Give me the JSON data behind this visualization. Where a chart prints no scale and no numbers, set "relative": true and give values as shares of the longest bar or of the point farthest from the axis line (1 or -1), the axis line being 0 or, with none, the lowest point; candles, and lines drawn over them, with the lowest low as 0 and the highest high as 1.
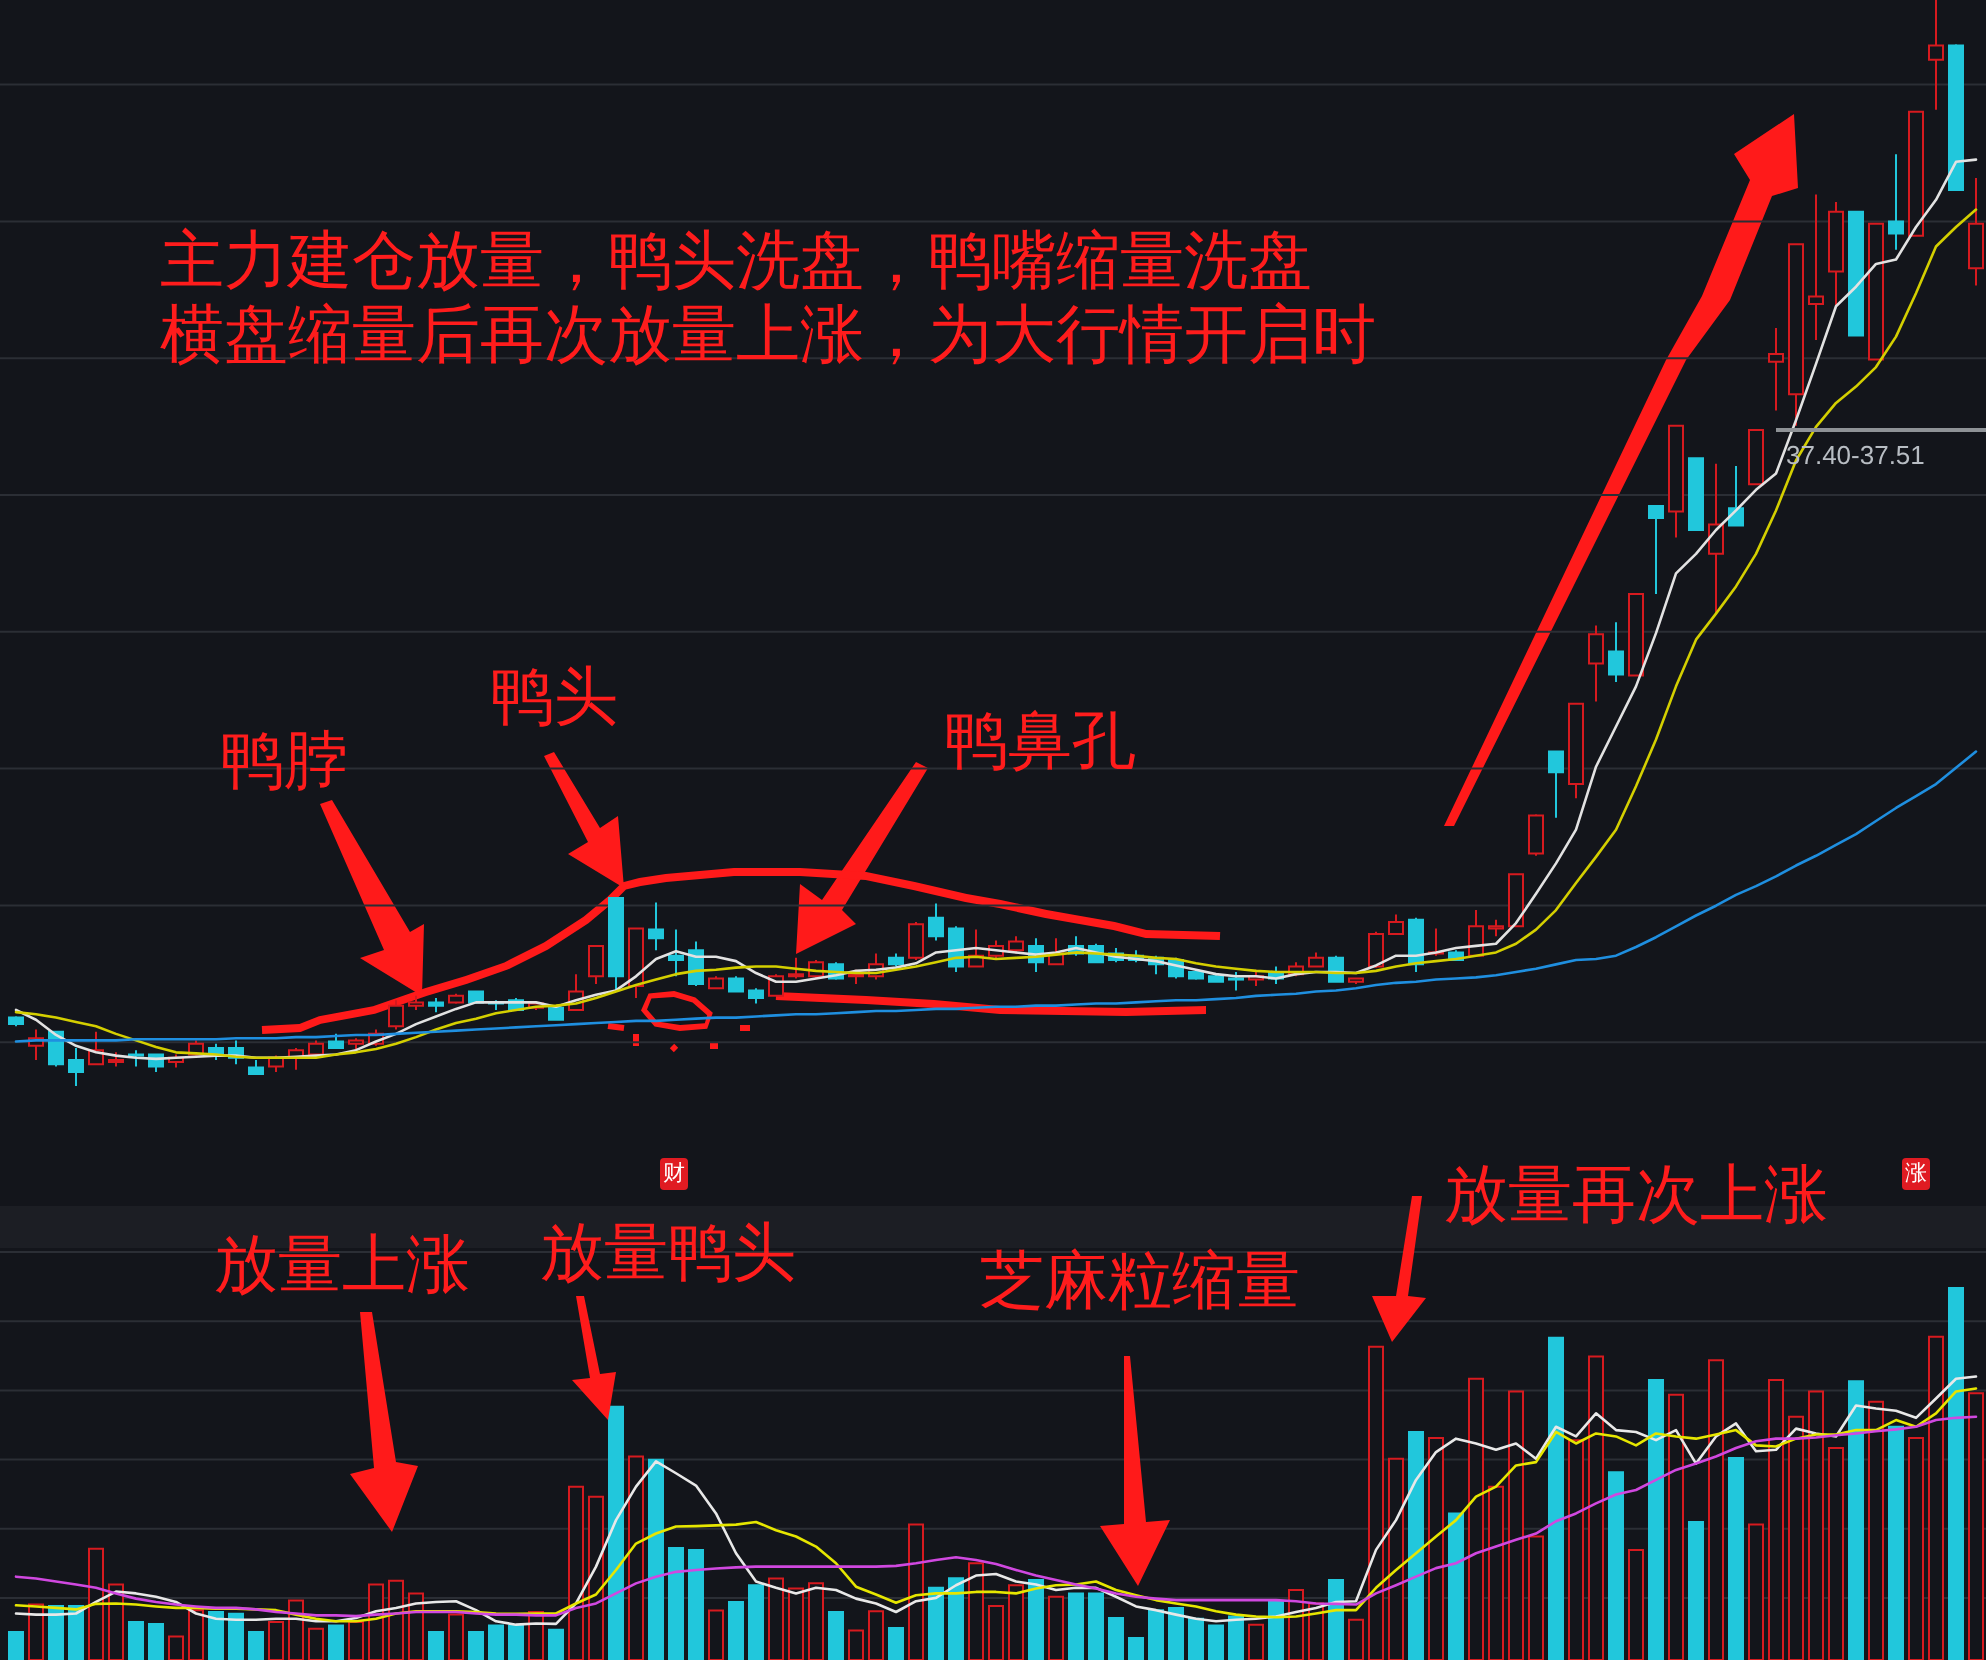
{
  "chart_data": [
    {
      "type": "candlestick",
      "relative": true,
      "grid": "y",
      "categories": [
        null,
        null,
        null,
        null,
        null,
        null,
        null,
        null,
        null,
        null,
        null,
        null,
        null,
        null,
        null,
        null,
        null,
        null,
        null,
        null,
        null,
        null,
        null,
        null,
        null,
        null,
        null,
        null,
        null,
        null,
        null,
        null,
        null,
        null,
        null,
        null,
        null,
        null,
        null,
        null,
        null,
        null,
        null,
        null,
        null,
        null,
        null,
        null,
        null,
        null,
        null,
        null,
        null,
        null,
        null,
        null,
        null,
        null,
        null,
        null,
        null,
        null,
        null,
        null,
        null,
        null,
        null,
        null,
        null,
        null,
        null,
        null,
        null,
        null,
        null,
        null,
        null,
        null,
        null,
        null,
        null,
        null,
        null,
        null,
        null,
        null,
        null,
        null,
        null,
        null,
        null,
        null,
        null,
        null,
        null,
        null,
        null,
        null,
        null
      ],
      "series": [
        {
          "type": "candlestick",
          "ohlc": [
            [
              0.063,
              0.064,
              0.055,
              0.057
            ],
            [
              0.037,
              0.052,
              0.024,
              0.044
            ],
            [
              0.05,
              0.05,
              0.018,
              0.02
            ],
            [
              0.024,
              0.035,
              0,
              0.013
            ],
            [
              0.02,
              0.05,
              0.02,
              0.033
            ],
            [
              0.022,
              0.031,
              0.018,
              0.024
            ],
            [
              0.029,
              0.033,
              0.018,
              0.028
            ],
            [
              0.029,
              0.029,
              0.013,
              0.018
            ],
            [
              0.022,
              0.029,
              0.017,
              0.026
            ],
            [
              0.029,
              0.042,
              0.028,
              0.039
            ],
            [
              0.035,
              0.039,
              0.024,
              0.028
            ],
            [
              0.035,
              0.042,
              0.02,
              0.026
            ],
            [
              0.017,
              0.024,
              0.011,
              0.011
            ],
            [
              0.018,
              0.028,
              0.013,
              0.026
            ],
            [
              0.026,
              0.035,
              0.015,
              0.033
            ],
            [
              0.029,
              0.042,
              0.028,
              0.039
            ],
            [
              0.041,
              0.048,
              0.035,
              0.035
            ],
            [
              0.039,
              0.044,
              0.033,
              0.042
            ],
            [
              0.039,
              0.052,
              0.037,
              0.048
            ],
            [
              0.055,
              0.079,
              0.052,
              0.074
            ],
            [
              0.074,
              0.083,
              0.07,
              0.077
            ],
            [
              0.077,
              0.081,
              0.068,
              0.074
            ],
            [
              0.077,
              0.085,
              0.076,
              0.083
            ],
            [
              0.087,
              0.087,
              0.076,
              0.077
            ],
            [
              0.077,
              0.079,
              0.07,
              0.076
            ],
            [
              0.079,
              0.081,
              0.07,
              0.07
            ],
            [
              0.072,
              0.077,
              0.07,
              0.076
            ],
            [
              0.072,
              0.074,
              0.061,
              0.061
            ],
            [
              0.07,
              0.103,
              0.07,
              0.087
            ],
            [
              0.101,
              0.129,
              0.094,
              0.129
            ],
            [
              0.173,
              0.173,
              0.087,
              0.101
            ],
            [
              0.092,
              0.145,
              0.081,
              0.145
            ],
            [
              0.144,
              0.169,
              0.125,
              0.136
            ],
            [
              0.12,
              0.144,
              0.101,
              0.116
            ],
            [
              0.125,
              0.133,
              0.092,
              0.094
            ],
            [
              0.09,
              0.101,
              0.09,
              0.099
            ],
            [
              0.099,
              0.101,
              0.087,
              0.087
            ],
            [
              0.088,
              0.09,
              0.076,
              0.081
            ],
            [
              0.083,
              0.103,
              0.083,
              0.101
            ],
            [
              0.101,
              0.118,
              0.099,
              0.103
            ],
            [
              0.101,
              0.116,
              0.099,
              0.114
            ],
            [
              0.112,
              0.114,
              0.098,
              0.099
            ],
            [
              0.101,
              0.107,
              0.094,
              0.103
            ],
            [
              0.101,
              0.122,
              0.098,
              0.112
            ],
            [
              0.118,
              0.122,
              0.11,
              0.112
            ],
            [
              0.118,
              0.151,
              0.116,
              0.149
            ],
            [
              0.155,
              0.168,
              0.134,
              0.138
            ],
            [
              0.145,
              0.147,
              0.105,
              0.11
            ],
            [
              0.11,
              0.144,
              0.11,
              0.12
            ],
            [
              0.12,
              0.134,
              0.116,
              0.129
            ],
            [
              0.125,
              0.138,
              0.122,
              0.133
            ],
            [
              0.129,
              0.136,
              0.105,
              0.114
            ],
            [
              0.112,
              0.136,
              0.112,
              0.122
            ],
            [
              0.129,
              0.138,
              0.12,
              0.122
            ],
            [
              0.129,
              0.131,
              0.114,
              0.114
            ],
            [
              0.122,
              0.127,
              0.114,
              0.116
            ],
            [
              0.12,
              0.125,
              0.114,
              0.116
            ],
            [
              0.118,
              0.12,
              0.103,
              0.112
            ],
            [
              0.116,
              0.118,
              0.099,
              0.101
            ],
            [
              0.105,
              0.107,
              0.098,
              0.099
            ],
            [
              0.101,
              0.103,
              0.096,
              0.096
            ],
            [
              0.099,
              0.105,
              0.088,
              0.098
            ],
            [
              0.098,
              0.107,
              0.092,
              0.101
            ],
            [
              0.105,
              0.11,
              0.094,
              0.099
            ],
            [
              0.103,
              0.114,
              0.101,
              0.11
            ],
            [
              0.11,
              0.123,
              0.11,
              0.118
            ],
            [
              0.118,
              0.12,
              0.096,
              0.096
            ],
            [
              0.096,
              0.099,
              0.094,
              0.099
            ],
            [
              0.11,
              0.142,
              0.109,
              0.14
            ],
            [
              0.14,
              0.158,
              0.14,
              0.151
            ],
            [
              0.153,
              0.155,
              0.105,
              0.112
            ],
            [
              0.122,
              0.145,
              0.12,
              0.123
            ],
            [
              0.123,
              0.125,
              0.116,
              0.116
            ],
            [
              0.12,
              0.162,
              0.12,
              0.147
            ],
            [
              0.145,
              0.153,
              0.138,
              0.147
            ],
            [
              0.147,
              0.195,
              0.147,
              0.195
            ],
            [
              0.214,
              0.25,
              0.212,
              0.249
            ],
            [
              0.308,
              0.308,
              0.247,
              0.289
            ],
            [
              0.278,
              0.352,
              0.265,
              0.352
            ],
            [
              0.389,
              0.424,
              0.354,
              0.416
            ],
            [
              0.4,
              0.427,
              0.372,
              0.379
            ],
            [
              0.378,
              0.453,
              0.378,
              0.453
            ],
            [
              0.534,
              0.534,
              0.453,
              0.523
            ],
            [
              0.529,
              0.608,
              0.505,
              0.608
            ],
            [
              0.578,
              0.578,
              0.512,
              0.512
            ],
            [
              0.49,
              0.573,
              0.435,
              0.517
            ],
            [
              0.532,
              0.571,
              0.516,
              0.516
            ],
            [
              0.554,
              0.604,
              0.554,
              0.604
            ],
            [
              0.667,
              0.698,
              0.622,
              0.674
            ],
            [
              0.637,
              0.775,
              0.608,
              0.775
            ],
            [
              0.72,
              0.821,
              0.687,
              0.727
            ],
            [
              0.75,
              0.814,
              0.718,
              0.805
            ],
            [
              0.805,
              0.805,
              0.691,
              0.691
            ],
            [
              0.669,
              0.794,
              0.669,
              0.794
            ],
            [
              0.796,
              0.858,
              0.77,
              0.785
            ],
            [
              0.783,
              0.897,
              0.783,
              0.897
            ],
            [
              0.945,
              1,
              0.899,
              0.958
            ],
            [
              0.958,
              0.959,
              0.825,
              0.825
            ],
            [
              0.753,
              0.836,
              0.737,
              0.794
            ]
          ],
          "colors": [
            "#21c7dc",
            "#d61a1f",
            "#21c7dc",
            "#21c7dc",
            "#d61a1f",
            "#d61a1f",
            "#21c7dc",
            "#21c7dc",
            "#d61a1f",
            "#d61a1f",
            "#21c7dc",
            "#21c7dc",
            "#21c7dc",
            "#d61a1f",
            "#d61a1f",
            "#d61a1f",
            "#21c7dc",
            "#d61a1f",
            "#d61a1f",
            "#d61a1f",
            "#d61a1f",
            "#21c7dc",
            "#d61a1f",
            "#21c7dc",
            "#21c7dc",
            "#21c7dc",
            "#d61a1f",
            "#21c7dc",
            "#d61a1f",
            "#d61a1f",
            "#21c7dc",
            "#d61a1f",
            "#21c7dc",
            "#21c7dc",
            "#21c7dc",
            "#d61a1f",
            "#21c7dc",
            "#21c7dc",
            "#d61a1f",
            "#d61a1f",
            "#d61a1f",
            "#21c7dc",
            "#d61a1f",
            "#d61a1f",
            "#21c7dc",
            "#d61a1f",
            "#21c7dc",
            "#21c7dc",
            "#d61a1f",
            "#d61a1f",
            "#d61a1f",
            "#21c7dc",
            "#d61a1f",
            "#21c7dc",
            "#21c7dc",
            "#21c7dc",
            "#21c7dc",
            "#21c7dc",
            "#21c7dc",
            "#21c7dc",
            "#21c7dc",
            "#21c7dc",
            "#d61a1f",
            "#21c7dc",
            "#d61a1f",
            "#d61a1f",
            "#21c7dc",
            "#d61a1f",
            "#d61a1f",
            "#d61a1f",
            "#21c7dc",
            "#d61a1f",
            "#21c7dc",
            "#d61a1f",
            "#d61a1f",
            "#d61a1f",
            "#d61a1f",
            "#21c7dc",
            "#d61a1f",
            "#d61a1f",
            "#21c7dc",
            "#d61a1f",
            "#21c7dc",
            "#d61a1f",
            "#21c7dc",
            "#d61a1f",
            "#21c7dc",
            "#d61a1f",
            "#d61a1f",
            "#d61a1f",
            "#d61a1f",
            "#d61a1f",
            "#21c7dc",
            "#d61a1f",
            "#21c7dc",
            "#d61a1f",
            "#d61a1f",
            "#21c7dc",
            "#d61a1f"
          ]
        },
        {
          "type": "line",
          "color": "#e2e2e2",
          "values": [
            0.07,
            0.061,
            0.047,
            0.037,
            0.031,
            0.028,
            0.026,
            0.025,
            0.026,
            0.027,
            0.028,
            0.028,
            0.026,
            0.026,
            0.027,
            0.028,
            0.029,
            0.033,
            0.041,
            0.048,
            0.057,
            0.064,
            0.071,
            0.077,
            0.077,
            0.077,
            0.077,
            0.073,
            0.079,
            0.084,
            0.088,
            0.101,
            0.117,
            0.124,
            0.119,
            0.119,
            0.115,
            0.104,
            0.096,
            0.096,
            0.099,
            0.102,
            0.106,
            0.107,
            0.109,
            0.113,
            0.123,
            0.125,
            0.127,
            0.125,
            0.123,
            0.121,
            0.123,
            0.127,
            0.123,
            0.119,
            0.117,
            0.115,
            0.111,
            0.107,
            0.103,
            0.101,
            0.101,
            0.099,
            0.103,
            0.105,
            0.105,
            0.104,
            0.111,
            0.12,
            0.12,
            0.123,
            0.127,
            0.129,
            0.131,
            0.15,
            0.177,
            0.205,
            0.236,
            0.294,
            0.331,
            0.368,
            0.417,
            0.472,
            0.49,
            0.512,
            0.53,
            0.549,
            0.564,
            0.613,
            0.665,
            0.718,
            0.736,
            0.757,
            0.761,
            0.791,
            0.816,
            0.851,
            0.853
          ]
        },
        {
          "type": "line",
          "color": "#d4cf00",
          "values": [
            0.068,
            0.066,
            0.063,
            0.059,
            0.055,
            0.048,
            0.042,
            0.036,
            0.031,
            0.03,
            0.029,
            0.027,
            0.026,
            0.026,
            0.026,
            0.026,
            0.029,
            0.031,
            0.034,
            0.039,
            0.045,
            0.052,
            0.058,
            0.062,
            0.067,
            0.07,
            0.073,
            0.074,
            0.076,
            0.081,
            0.087,
            0.093,
            0.098,
            0.103,
            0.106,
            0.107,
            0.109,
            0.11,
            0.11,
            0.108,
            0.106,
            0.105,
            0.104,
            0.104,
            0.107,
            0.11,
            0.114,
            0.118,
            0.119,
            0.117,
            0.118,
            0.119,
            0.121,
            0.123,
            0.122,
            0.121,
            0.12,
            0.118,
            0.117,
            0.113,
            0.11,
            0.108,
            0.106,
            0.105,
            0.105,
            0.105,
            0.104,
            0.104,
            0.106,
            0.11,
            0.113,
            0.115,
            0.117,
            0.12,
            0.123,
            0.131,
            0.144,
            0.162,
            0.187,
            0.211,
            0.236,
            0.276,
            0.319,
            0.368,
            0.411,
            0.435,
            0.46,
            0.49,
            0.53,
            0.576,
            0.607,
            0.629,
            0.644,
            0.662,
            0.69,
            0.73,
            0.773,
            0.791,
            0.807
          ]
        },
        {
          "type": "line",
          "color": "#1f8fe0",
          "values": [
            0.041,
            0.042,
            0.042,
            0.042,
            0.042,
            0.042,
            0.043,
            0.043,
            0.043,
            0.043,
            0.043,
            0.044,
            0.044,
            0.044,
            0.045,
            0.045,
            0.046,
            0.047,
            0.047,
            0.048,
            0.049,
            0.05,
            0.051,
            0.052,
            0.053,
            0.054,
            0.055,
            0.056,
            0.057,
            0.058,
            0.059,
            0.06,
            0.06,
            0.061,
            0.062,
            0.063,
            0.063,
            0.064,
            0.065,
            0.066,
            0.066,
            0.067,
            0.068,
            0.069,
            0.069,
            0.07,
            0.071,
            0.071,
            0.072,
            0.073,
            0.073,
            0.074,
            0.074,
            0.075,
            0.076,
            0.076,
            0.077,
            0.078,
            0.079,
            0.079,
            0.08,
            0.081,
            0.083,
            0.084,
            0.085,
            0.087,
            0.088,
            0.09,
            0.093,
            0.095,
            0.096,
            0.098,
            0.099,
            0.1,
            0.102,
            0.105,
            0.108,
            0.112,
            0.116,
            0.117,
            0.12,
            0.128,
            0.137,
            0.147,
            0.157,
            0.166,
            0.176,
            0.184,
            0.193,
            0.203,
            0.212,
            0.222,
            0.232,
            0.244,
            0.256,
            0.267,
            0.278,
            0.293,
            0.308
          ]
        }
      ],
      "ref_lines": [
        {
          "axis": "y",
          "value": 0.604,
          "color": "#8e9296"
        }
      ],
      "annotations": [
        "主力建仓放量，鸭头洗盘，鸭嘴缩量洗盘",
        "横盘缩量后再次放量上涨，为大行情开启时",
        "鸭脖",
        "鸭头",
        "鸭鼻孔",
        "财",
        "涨",
        "37.40-37.51"
      ]
    },
    {
      "type": "bar",
      "relative": true,
      "grid": "y",
      "categories": [
        null,
        null,
        null,
        null,
        null,
        null,
        null,
        null,
        null,
        null,
        null,
        null,
        null,
        null,
        null,
        null,
        null,
        null,
        null,
        null,
        null,
        null,
        null,
        null,
        null,
        null,
        null,
        null,
        null,
        null,
        null,
        null,
        null,
        null,
        null,
        null,
        null,
        null,
        null,
        null,
        null,
        null,
        null,
        null,
        null,
        null,
        null,
        null,
        null,
        null,
        null,
        null,
        null,
        null,
        null,
        null,
        null,
        null,
        null,
        null,
        null,
        null,
        null,
        null,
        null,
        null,
        null,
        null,
        null,
        null,
        null,
        null,
        null,
        null,
        null,
        null,
        null,
        null,
        null,
        null,
        null,
        null,
        null,
        null,
        null,
        null,
        null,
        null,
        null,
        null,
        null,
        null,
        null,
        null,
        null,
        null,
        null,
        null,
        null
      ],
      "series": [
        {
          "type": "bar",
          "values": [
            0.075,
            0.149,
            0.145,
            0.145,
            0.299,
            0.203,
            0.102,
            0.097,
            0.063,
            0.134,
            0.129,
            0.124,
            0.075,
            0.102,
            0.16,
            0.084,
            0.093,
            0.102,
            0.203,
            0.213,
            0.179,
            0.075,
            0.122,
            0.075,
            0.093,
            0.093,
            0.129,
            0.081,
            0.466,
            0.439,
            0.681,
            0.547,
            0.538,
            0.301,
            0.296,
            0.133,
            0.156,
            0.201,
            0.219,
            0.192,
            0.206,
            0.129,
            0.079,
            0.131,
            0.086,
            0.364,
            0.194,
            0.22,
            0.26,
            0.145,
            0.201,
            0.215,
            0.17,
            0.179,
            0.179,
            0.113,
            0.059,
            0.134,
            0.14,
            0.111,
            0.093,
            0.117,
            0.095,
            0.158,
            0.188,
            0.152,
            0.215,
            0.108,
            0.842,
            0.541,
            0.613,
            0.597,
            0.394,
            0.756,
            0.466,
            0.722,
            0.332,
            0.866,
            0.591,
            0.816,
            0.505,
            0.296,
            0.753,
            0.713,
            0.371,
            0.806,
            0.543,
            0.364,
            0.753,
            0.654,
            0.722,
            0.57,
            0.749,
            0.694,
            0.627,
            0.597,
            0.869,
            1,
            0.717
          ],
          "colors": [
            "#21c7dc",
            "#d61a1f",
            "#21c7dc",
            "#21c7dc",
            "#d61a1f",
            "#d61a1f",
            "#21c7dc",
            "#21c7dc",
            "#d61a1f",
            "#d61a1f",
            "#21c7dc",
            "#21c7dc",
            "#21c7dc",
            "#d61a1f",
            "#d61a1f",
            "#d61a1f",
            "#21c7dc",
            "#d61a1f",
            "#d61a1f",
            "#d61a1f",
            "#d61a1f",
            "#21c7dc",
            "#d61a1f",
            "#21c7dc",
            "#21c7dc",
            "#21c7dc",
            "#d61a1f",
            "#21c7dc",
            "#d61a1f",
            "#d61a1f",
            "#21c7dc",
            "#d61a1f",
            "#21c7dc",
            "#21c7dc",
            "#21c7dc",
            "#d61a1f",
            "#21c7dc",
            "#21c7dc",
            "#d61a1f",
            "#d61a1f",
            "#d61a1f",
            "#21c7dc",
            "#d61a1f",
            "#d61a1f",
            "#21c7dc",
            "#d61a1f",
            "#21c7dc",
            "#21c7dc",
            "#d61a1f",
            "#d61a1f",
            "#d61a1f",
            "#21c7dc",
            "#d61a1f",
            "#21c7dc",
            "#21c7dc",
            "#21c7dc",
            "#21c7dc",
            "#21c7dc",
            "#21c7dc",
            "#21c7dc",
            "#21c7dc",
            "#21c7dc",
            "#d61a1f",
            "#21c7dc",
            "#d61a1f",
            "#d61a1f",
            "#21c7dc",
            "#d61a1f",
            "#d61a1f",
            "#d61a1f",
            "#21c7dc",
            "#d61a1f",
            "#21c7dc",
            "#d61a1f",
            "#d61a1f",
            "#d61a1f",
            "#d61a1f",
            "#21c7dc",
            "#d61a1f",
            "#d61a1f",
            "#21c7dc",
            "#d61a1f",
            "#21c7dc",
            "#d61a1f",
            "#21c7dc",
            "#d61a1f",
            "#21c7dc",
            "#d61a1f",
            "#d61a1f",
            "#d61a1f",
            "#d61a1f",
            "#d61a1f",
            "#21c7dc",
            "#d61a1f",
            "#21c7dc",
            "#d61a1f",
            "#d61a1f",
            "#21c7dc",
            "#d61a1f"
          ]
        },
        {
          "type": "line",
          "color": "#e8e8e8",
          "values": [
            0.125,
            0.122,
            0.122,
            0.125,
            0.156,
            0.184,
            0.179,
            0.17,
            0.156,
            0.125,
            0.111,
            0.108,
            0.108,
            0.111,
            0.111,
            0.104,
            0.104,
            0.113,
            0.131,
            0.14,
            0.152,
            0.156,
            0.158,
            0.134,
            0.104,
            0.095,
            0.098,
            0.097,
            0.152,
            0.251,
            0.376,
            0.466,
            0.534,
            0.502,
            0.469,
            0.394,
            0.287,
            0.211,
            0.194,
            0.179,
            0.194,
            0.188,
            0.165,
            0.152,
            0.129,
            0.158,
            0.167,
            0.201,
            0.227,
            0.231,
            0.211,
            0.203,
            0.188,
            0.194,
            0.194,
            0.17,
            0.144,
            0.134,
            0.122,
            0.111,
            0.104,
            0.108,
            0.111,
            0.117,
            0.129,
            0.14,
            0.156,
            0.158,
            0.296,
            0.376,
            0.484,
            0.559,
            0.595,
            0.582,
            0.565,
            0.582,
            0.541,
            0.627,
            0.601,
            0.663,
            0.618,
            0.613,
            0.591,
            0.618,
            0.528,
            0.601,
            0.636,
            0.561,
            0.565,
            0.622,
            0.609,
            0.601,
            0.684,
            0.676,
            0.67,
            0.651,
            0.703,
            0.756,
            0.762
          ]
        },
        {
          "type": "line",
          "color": "#e6e600",
          "values": [
            0.147,
            0.144,
            0.14,
            0.136,
            0.151,
            0.152,
            0.149,
            0.144,
            0.14,
            0.14,
            0.138,
            0.138,
            0.136,
            0.134,
            0.122,
            0.111,
            0.104,
            0.104,
            0.111,
            0.125,
            0.131,
            0.131,
            0.131,
            0.129,
            0.125,
            0.124,
            0.125,
            0.125,
            0.152,
            0.176,
            0.242,
            0.313,
            0.34,
            0.359,
            0.36,
            0.362,
            0.364,
            0.371,
            0.349,
            0.332,
            0.305,
            0.26,
            0.197,
            0.176,
            0.154,
            0.174,
            0.179,
            0.179,
            0.183,
            0.183,
            0.179,
            0.192,
            0.201,
            0.203,
            0.211,
            0.188,
            0.174,
            0.161,
            0.152,
            0.144,
            0.131,
            0.122,
            0.117,
            0.115,
            0.117,
            0.125,
            0.134,
            0.134,
            0.194,
            0.242,
            0.287,
            0.332,
            0.376,
            0.439,
            0.466,
            0.523,
            0.532,
            0.613,
            0.582,
            0.609,
            0.601,
            0.577,
            0.609,
            0.601,
            0.595,
            0.606,
            0.618,
            0.577,
            0.574,
            0.595,
            0.606,
            0.606,
            0.618,
            0.618,
            0.645,
            0.627,
            0.663,
            0.722,
            0.73
          ]
        },
        {
          "type": "line",
          "color": "#d048e0",
          "values": [
            0.224,
            0.219,
            0.211,
            0.203,
            0.194,
            0.179,
            0.165,
            0.156,
            0.149,
            0.144,
            0.14,
            0.14,
            0.136,
            0.129,
            0.125,
            0.12,
            0.12,
            0.118,
            0.122,
            0.125,
            0.129,
            0.129,
            0.129,
            0.125,
            0.122,
            0.122,
            0.12,
            0.12,
            0.14,
            0.152,
            0.179,
            0.206,
            0.224,
            0.237,
            0.242,
            0.246,
            0.249,
            0.251,
            0.251,
            0.251,
            0.251,
            0.251,
            0.251,
            0.251,
            0.253,
            0.26,
            0.269,
            0.276,
            0.269,
            0.258,
            0.242,
            0.227,
            0.215,
            0.203,
            0.192,
            0.179,
            0.17,
            0.165,
            0.161,
            0.161,
            0.161,
            0.161,
            0.161,
            0.161,
            0.158,
            0.152,
            0.151,
            0.149,
            0.179,
            0.201,
            0.224,
            0.247,
            0.26,
            0.287,
            0.305,
            0.323,
            0.34,
            0.373,
            0.394,
            0.421,
            0.445,
            0.457,
            0.484,
            0.511,
            0.528,
            0.547,
            0.57,
            0.588,
            0.595,
            0.595,
            0.598,
            0.604,
            0.609,
            0.615,
            0.62,
            0.627,
            0.645,
            0.651,
            0.654
          ]
        }
      ],
      "annotations": [
        "放量上涨",
        "放量鸭头",
        "芝麻粒缩量",
        "放量再次上涨"
      ]
    }
  ]
}
